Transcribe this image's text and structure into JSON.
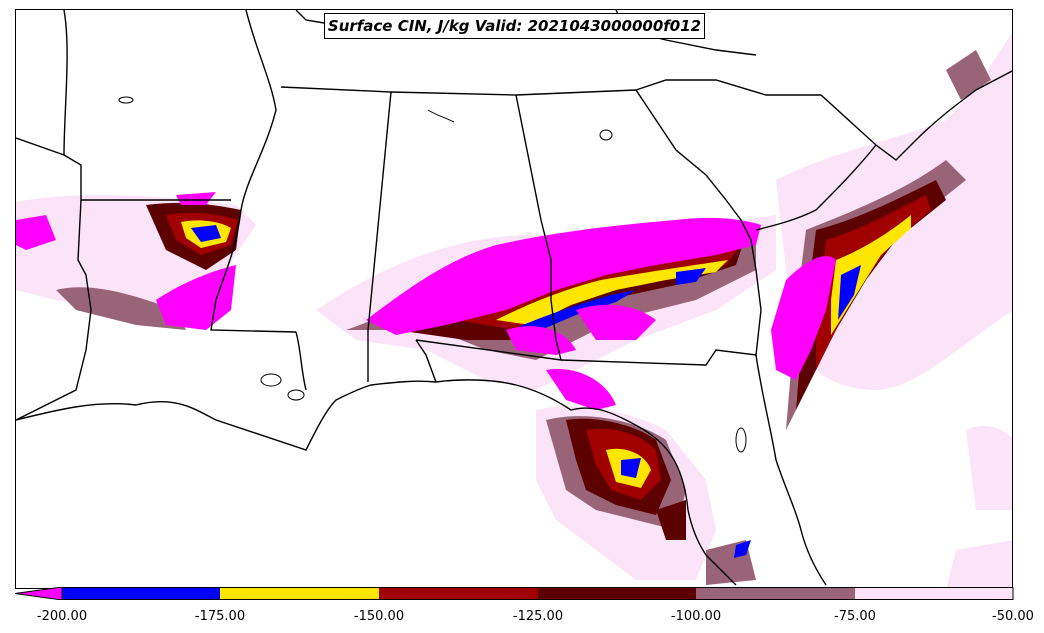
{
  "title": "Surface CIN, J/kg Valid: 2021043000000f012",
  "colorbar": {
    "tick_labels": [
      "-200.00",
      "-175.00",
      "-150.00",
      "-125.00",
      "-100.00",
      "-75.00",
      "-50.00"
    ],
    "colors": {
      "under": "#ff00ff",
      "bin_minus200_minus175": "#0000ff",
      "bin_minus175_minus150": "#ffe600",
      "bin_minus150_minus125": "#a00000",
      "bin_minus125_minus100": "#5c0000",
      "bin_minus100_minus75": "#9a6478",
      "bin_minus75_minus50": "#fce4f8"
    }
  },
  "map": {
    "region": "Southeastern United States",
    "field": "Surface CIN",
    "units": "J/kg"
  }
}
